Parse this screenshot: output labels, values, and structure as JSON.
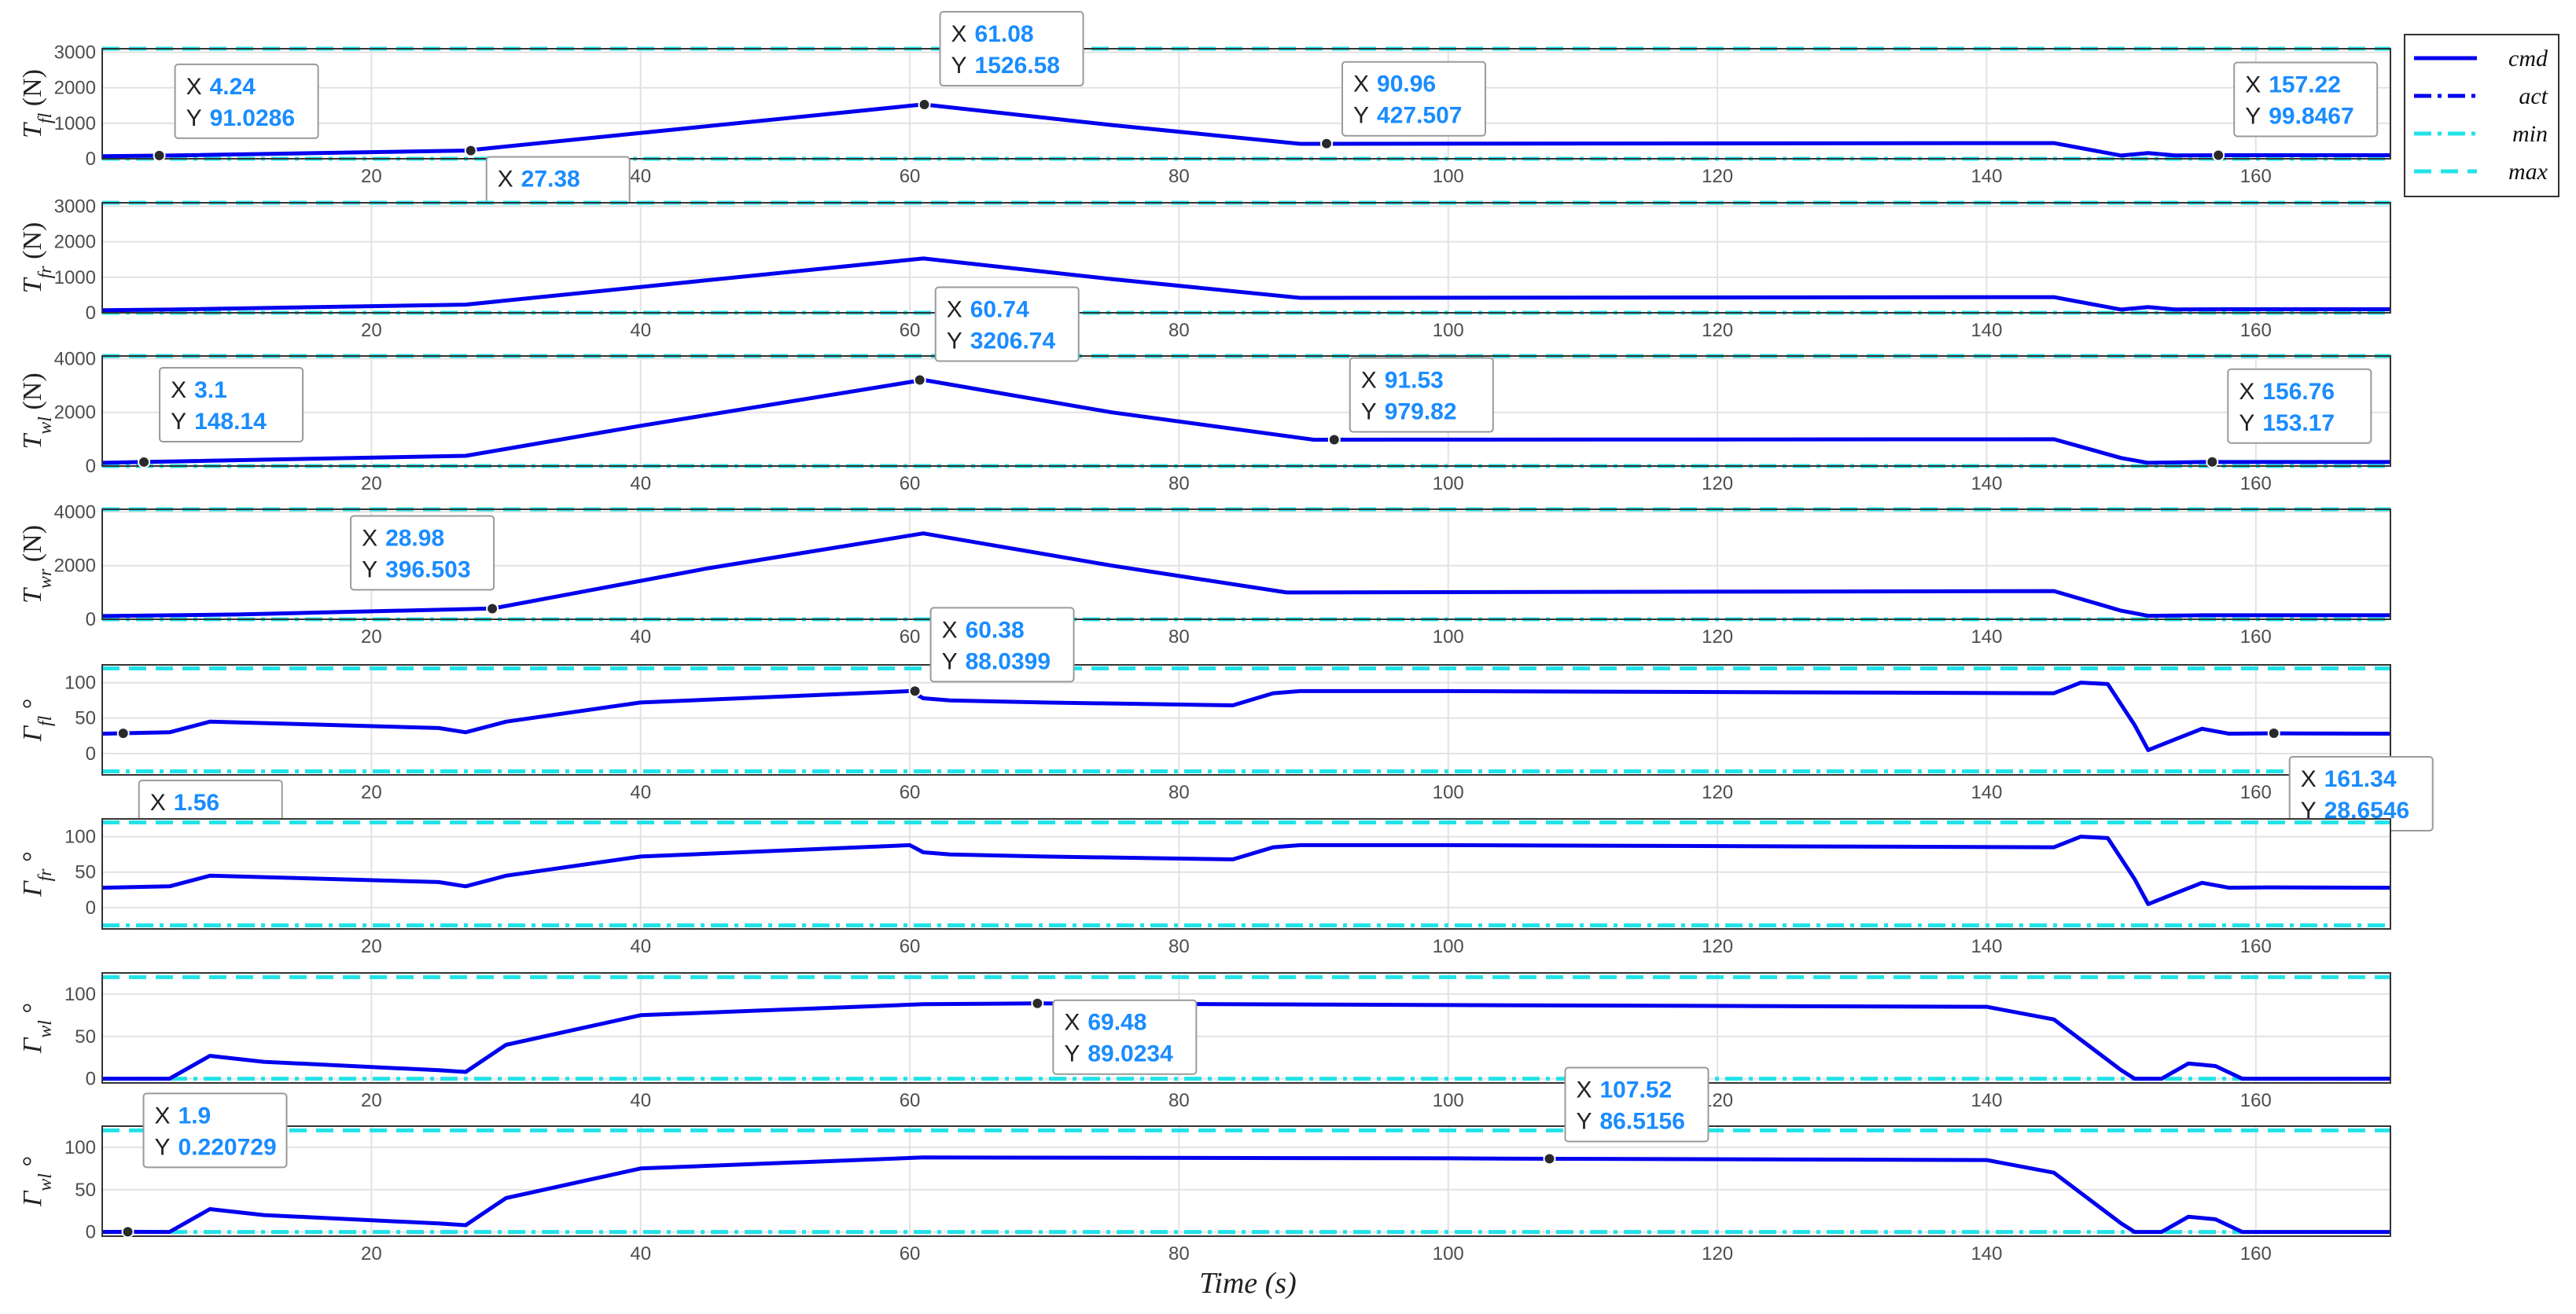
{
  "chart_data": {
    "type": "line",
    "xlabel": "Time (s)",
    "xlim": [
      0,
      170
    ],
    "xticks": [
      20,
      40,
      60,
      80,
      100,
      120,
      140,
      160
    ],
    "grid": true,
    "legend": {
      "placement": "top-right-outside",
      "entries": [
        {
          "name": "cmd",
          "style": "solid",
          "color": "#0000ee"
        },
        {
          "name": "act",
          "style": "dashdot",
          "color": "#0000ee"
        },
        {
          "name": "min",
          "style": "dashdot",
          "color": "#22e3e8"
        },
        {
          "name": "max",
          "style": "dashed",
          "color": "#22e3e8"
        }
      ]
    },
    "panels": [
      {
        "ylabel": "T_fl (N)",
        "ylab_main": "T",
        "ylab_sub": "fl",
        "ylab_unit": " (N)",
        "ylim": [
          0,
          3100
        ],
        "yticks": [
          "0",
          "1000",
          "2000",
          "3000"
        ],
        "ytick_values": [
          0,
          1000,
          2000,
          3000
        ],
        "min_line": 0,
        "max_line": 3100,
        "series": [
          {
            "name": "cmd",
            "x": [
              0,
              5,
              27,
              61,
              75,
              89,
              145,
              150,
              152,
              154,
              158,
              170
            ],
            "y": [
              70,
              90,
              230,
              1530,
              950,
              420,
              440,
              90,
              160,
              95,
              100,
              100
            ]
          }
        ],
        "datatips": [
          {
            "x_label": "4.24",
            "y_label": "91.0286",
            "x": 4.24,
            "y": 91.0286
          },
          {
            "x_label": "27.38",
            "y_label": "228.733",
            "x": 27.38,
            "y": 228.733
          },
          {
            "x_label": "61.08",
            "y_label": "1526.58",
            "x": 61.08,
            "y": 1526.58
          },
          {
            "x_label": "90.96",
            "y_label": "427.507",
            "x": 90.96,
            "y": 427.507
          },
          {
            "x_label": "157.22",
            "y_label": "99.8467",
            "x": 157.22,
            "y": 99.8467
          }
        ]
      },
      {
        "ylabel": "T_fr (N)",
        "ylab_main": "T",
        "ylab_sub": "fr",
        "ylab_unit": " (N)",
        "ylim": [
          0,
          3100
        ],
        "yticks": [
          "0",
          "1000",
          "2000",
          "3000"
        ],
        "ytick_values": [
          0,
          1000,
          2000,
          3000
        ],
        "min_line": 0,
        "max_line": 3100,
        "series": [
          {
            "name": "cmd",
            "x": [
              0,
              5,
              27,
              61,
              75,
              89,
              145,
              150,
              152,
              154,
              158,
              170
            ],
            "y": [
              70,
              90,
              230,
              1530,
              950,
              420,
              440,
              90,
              160,
              95,
              100,
              100
            ]
          }
        ],
        "datatips": []
      },
      {
        "ylabel": "T_wl (N)",
        "ylab_main": "T",
        "ylab_sub": "wl",
        "ylab_unit": " (N)",
        "ylim": [
          0,
          4100
        ],
        "yticks": [
          "0",
          "2000",
          "4000"
        ],
        "ytick_values": [
          0,
          2000,
          4000
        ],
        "min_line": 0,
        "max_line": 4100,
        "series": [
          {
            "name": "cmd",
            "x": [
              0,
              3,
              27,
              40,
              61,
              75,
              90,
              145,
              150,
              152,
              156,
              170
            ],
            "y": [
              120,
              150,
              380,
              1500,
              3210,
              2000,
              980,
              1000,
              300,
              120,
              150,
              150
            ]
          }
        ],
        "datatips": [
          {
            "x_label": "3.1",
            "y_label": "148.14",
            "x": 3.1,
            "y": 148.14
          },
          {
            "x_label": "60.74",
            "y_label": "3206.74",
            "x": 60.74,
            "y": 3206.74
          },
          {
            "x_label": "91.53",
            "y_label": "979.82",
            "x": 91.53,
            "y": 979.82
          },
          {
            "x_label": "156.76",
            "y_label": "153.17",
            "x": 156.76,
            "y": 153.17
          }
        ]
      },
      {
        "ylabel": "T_wr (N)",
        "ylab_main": "T",
        "ylab_sub": "wr",
        "ylab_unit": " (N)",
        "ylim": [
          0,
          4100
        ],
        "yticks": [
          "0",
          "2000",
          "4000"
        ],
        "ytick_values": [
          0,
          2000,
          4000
        ],
        "min_line": 0,
        "max_line": 4100,
        "series": [
          {
            "name": "cmd",
            "x": [
              0,
              10,
              29,
              45,
              61,
              75,
              88,
              145,
              150,
              152,
              156,
              170
            ],
            "y": [
              120,
              180,
              400,
              1900,
              3200,
              2000,
              1000,
              1050,
              320,
              130,
              150,
              150
            ]
          }
        ],
        "datatips": [
          {
            "x_label": "28.98",
            "y_label": "396.503",
            "x": 28.98,
            "y": 396.503
          }
        ]
      },
      {
        "ylabel": "Γ_fl °",
        "ylab_main": "Γ",
        "ylab_sub": "fl",
        "ylab_unit": " °",
        "ylim": [
          -30,
          125
        ],
        "yticks": [
          "0",
          "50",
          "100"
        ],
        "ytick_values": [
          0,
          50,
          100
        ],
        "min_line": -25,
        "max_line": 120,
        "series": [
          {
            "name": "cmd",
            "x": [
              0,
              5,
              8,
              12,
              25,
              27,
              30,
              40,
              60,
              61,
              63,
              70,
              84,
              87,
              89,
              100,
              145,
              147,
              149,
              151,
              152,
              154,
              156,
              158,
              161,
              170
            ],
            "y": [
              28,
              30,
              45,
              43,
              36,
              30,
              45,
              72,
              88,
              78,
              75,
              72,
              68,
              85,
              88,
              88,
              85,
              100,
              98,
              40,
              5,
              20,
              35,
              28,
              28.6,
              28
            ]
          }
        ],
        "datatips": [
          {
            "x_label": "1.56",
            "y_label": "28.5191",
            "x": 1.56,
            "y": 28.5191
          },
          {
            "x_label": "60.38",
            "y_label": "88.0399",
            "x": 60.38,
            "y": 88.0399
          },
          {
            "x_label": "161.34",
            "y_label": "28.6546",
            "x": 161.34,
            "y": 28.6546
          }
        ]
      },
      {
        "ylabel": "Γ_fr °",
        "ylab_main": "Γ",
        "ylab_sub": "fr",
        "ylab_unit": " °",
        "ylim": [
          -30,
          125
        ],
        "yticks": [
          "0",
          "50",
          "100"
        ],
        "ytick_values": [
          0,
          50,
          100
        ],
        "min_line": -25,
        "max_line": 120,
        "series": [
          {
            "name": "cmd",
            "x": [
              0,
              5,
              8,
              12,
              25,
              27,
              30,
              40,
              60,
              61,
              63,
              70,
              84,
              87,
              89,
              100,
              145,
              147,
              149,
              151,
              152,
              154,
              156,
              158,
              161,
              170
            ],
            "y": [
              28,
              30,
              45,
              43,
              36,
              30,
              45,
              72,
              88,
              78,
              75,
              72,
              68,
              85,
              88,
              88,
              85,
              100,
              98,
              40,
              5,
              20,
              35,
              28,
              28.6,
              28
            ]
          }
        ],
        "datatips": []
      },
      {
        "ylabel": "Γ_wl °",
        "ylab_main": "Γ",
        "ylab_sub": "wl",
        "ylab_unit": " °",
        "ylim": [
          -5,
          125
        ],
        "yticks": [
          "0",
          "50",
          "100"
        ],
        "ytick_values": [
          0,
          50,
          100
        ],
        "min_line": 0,
        "max_line": 120,
        "series": [
          {
            "name": "cmd",
            "x": [
              0,
              5,
              8,
              12,
              25,
              27,
              30,
              40,
              61,
              69.5,
              100,
              140,
              145,
              150,
              151,
              153,
              155,
              157,
              159,
              170
            ],
            "y": [
              0,
              0,
              27,
              20,
              10,
              8,
              40,
              75,
              88,
              89,
              87,
              85,
              70,
              10,
              0,
              0,
              18,
              15,
              0,
              0
            ]
          }
        ],
        "datatips": [
          {
            "x_label": "69.48",
            "y_label": "89.0234",
            "x": 69.48,
            "y": 89.0234
          }
        ]
      },
      {
        "ylabel": "Γ_wl °",
        "ylab_main": "Γ",
        "ylab_sub": "wl",
        "ylab_unit": " °",
        "ylim": [
          -5,
          125
        ],
        "yticks": [
          "0",
          "50",
          "100"
        ],
        "ytick_values": [
          0,
          50,
          100
        ],
        "min_line": 0,
        "max_line": 120,
        "series": [
          {
            "name": "cmd",
            "x": [
              0,
              1.9,
              5,
              8,
              12,
              25,
              27,
              30,
              40,
              61,
              100,
              107.5,
              140,
              145,
              150,
              151,
              153,
              155,
              157,
              159,
              170
            ],
            "y": [
              0,
              0.22,
              0,
              27,
              20,
              10,
              8,
              40,
              75,
              88,
              87,
              86.5,
              85,
              70,
              10,
              0,
              0,
              18,
              15,
              0,
              0
            ]
          }
        ],
        "datatips": [
          {
            "x_label": "1.9",
            "y_label": "0.220729",
            "x": 1.9,
            "y": 0.220729
          },
          {
            "x_label": "107.52",
            "y_label": "86.5156",
            "x": 107.52,
            "y": 86.5156
          }
        ]
      }
    ]
  },
  "colors": {
    "cmd": "#0000ee",
    "limits": "#22e3e8",
    "datatip_value": "#1a8cff"
  }
}
